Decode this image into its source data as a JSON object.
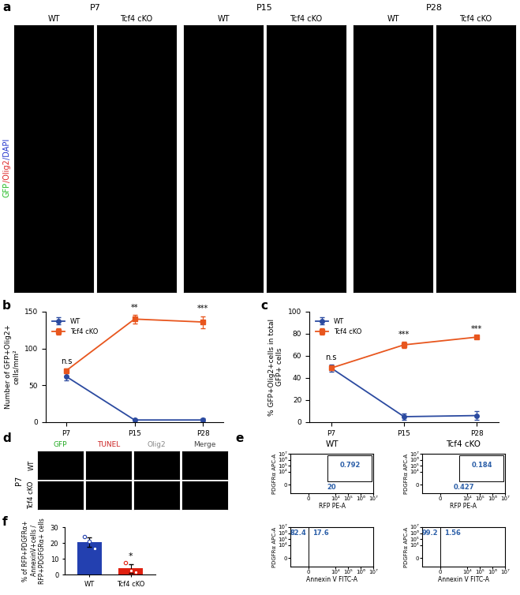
{
  "panel_labels": [
    "a",
    "b",
    "c",
    "d",
    "e",
    "f"
  ],
  "panel_a": {
    "timepoints": [
      "P7",
      "P15",
      "P28"
    ],
    "groups": [
      "WT",
      "Tcf4 cKO"
    ],
    "stain_label": [
      {
        "text": "GFP",
        "color": "#22bb22"
      },
      {
        "text": "/Olig2",
        "color": "#dd2222"
      },
      {
        "text": "/DAPI",
        "color": "#2233cc"
      }
    ]
  },
  "panel_d": {
    "timepoint": "P7",
    "groups": [
      "WT",
      "Tcf4 cKO"
    ],
    "channels": [
      {
        "text": "GFP",
        "color": "#22aa22"
      },
      {
        "text": "TUNEL",
        "color": "#cc2222"
      },
      {
        "text": "Olig2",
        "color": "#888888"
      },
      {
        "text": "Merge",
        "color": "#444444"
      }
    ]
  },
  "panel_e": {
    "xlim": [
      -2000,
      10000000
    ],
    "ylim": [
      -2000,
      10000000
    ],
    "xticks": [
      0,
      {
        "value": 10000,
        "label": "10⁴"
      },
      {
        "value": 100000,
        "label": "10⁵"
      },
      {
        "value": 1000000,
        "label": "10⁶"
      },
      {
        "value": 10000000,
        "label": "10⁷"
      }
    ],
    "yticks": [
      0,
      {
        "value": 10000,
        "label": "10⁴"
      },
      {
        "value": 100000,
        "label": "10⁵"
      },
      {
        "value": 1000000,
        "label": "10⁶"
      },
      {
        "value": 10000000,
        "label": "10⁷"
      }
    ],
    "value_color": "#2c5fa8",
    "columns": [
      {
        "title": "WT",
        "gating": {
          "x_label": "RFP PE-A",
          "y_label": "PDGFRα APC-A",
          "values": [
            0.792,
            20
          ]
        },
        "annexin": {
          "x_label": "Annexin V FITC-A",
          "y_label": "PDGFRα APC-A",
          "values": [
            82.4,
            17.6
          ]
        }
      },
      {
        "title": "Tcf4 cKO",
        "gating": {
          "x_label": "RFP PE-A",
          "y_label": "PDGFRα APC-A",
          "values": [
            0.184,
            0.427
          ]
        },
        "annexin": {
          "x_label": "Annexin V FITC-A",
          "y_label": "PDGFRα APC-A",
          "values": [
            99.2,
            1.56
          ]
        }
      }
    ]
  },
  "chart_data": [
    {
      "type": "line",
      "categories": [
        "P7",
        "P15",
        "P28"
      ],
      "y_label": "Number of GFP+Olig2+\ncells/mm²",
      "ylim": [
        0,
        150
      ],
      "yticks": [
        0,
        50,
        100,
        150
      ],
      "legend": "upper left",
      "series": [
        {
          "name": "WT",
          "color": "#2b4aa0",
          "marker": "circle",
          "values": [
            62,
            3,
            3
          ],
          "errors": [
            5,
            1,
            2
          ]
        },
        {
          "name": "Tcf4 cKO",
          "color": "#e8561e",
          "marker": "square",
          "values": [
            70,
            140,
            136
          ],
          "errors": [
            3,
            6,
            8
          ]
        }
      ],
      "annotations": [
        {
          "category": "P7",
          "text": "n.s"
        },
        {
          "category": "P15",
          "text": "**"
        },
        {
          "category": "P28",
          "text": "***"
        }
      ]
    },
    {
      "type": "line",
      "categories": [
        "P7",
        "P15",
        "P28"
      ],
      "y_label": "% GFP+Olig2+cells in total\nGFP+ cells",
      "ylim": [
        0,
        100
      ],
      "yticks": [
        0,
        20,
        40,
        60,
        80,
        100
      ],
      "legend": "upper left",
      "series": [
        {
          "name": "WT",
          "color": "#2b4aa0",
          "marker": "circle",
          "values": [
            49,
            5,
            6
          ],
          "errors": [
            3,
            3,
            4
          ]
        },
        {
          "name": "Tcf4 cKO",
          "color": "#e8561e",
          "marker": "square",
          "values": [
            49,
            70,
            77
          ],
          "errors": [
            2,
            3,
            1
          ]
        }
      ],
      "annotations": [
        {
          "category": "P7",
          "text": "n.s"
        },
        {
          "category": "P15",
          "text": "***"
        },
        {
          "category": "P28",
          "text": "***"
        }
      ]
    },
    {
      "type": "bar",
      "categories": [
        "WT",
        "Tcf4 cKO"
      ],
      "values": [
        20.5,
        3.8
      ],
      "errors": [
        3,
        2.7
      ],
      "points": [
        [
          24,
          21,
          16.5
        ],
        [
          7.5,
          2.5,
          1.4
        ]
      ],
      "colors": [
        "#2340b0",
        "#e02010"
      ],
      "y_label": "% of RFP+PDGFRα+\nAnnexinV+cells /\nRFP+PDGFGRα+ cells",
      "ylim": [
        0,
        30
      ],
      "yticks": [
        0,
        10,
        20,
        30
      ],
      "annotations": [
        {
          "category": "Tcf4 cKO",
          "text": "*"
        }
      ]
    }
  ]
}
